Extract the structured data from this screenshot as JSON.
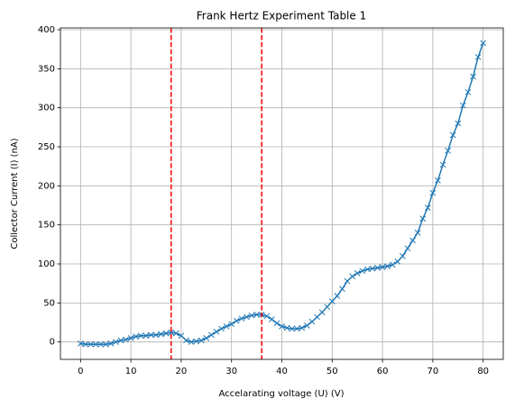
{
  "chart_data": {
    "type": "line",
    "title": "Frank Hertz Experiment Table 1",
    "x_label": "Accelarating voltage (U) (V)",
    "y_label": "Collector Current (I) (nA)",
    "x": [
      0,
      1,
      2,
      3,
      4,
      5,
      6,
      7,
      8,
      9,
      10,
      11,
      12,
      13,
      14,
      15,
      16,
      17,
      18,
      19,
      20,
      21,
      22,
      23,
      24,
      25,
      26,
      27,
      28,
      29,
      30,
      31,
      32,
      33,
      34,
      35,
      36,
      37,
      38,
      39,
      40,
      41,
      42,
      43,
      44,
      45,
      46,
      47,
      48,
      49,
      50,
      51,
      52,
      53,
      54,
      55,
      56,
      57,
      58,
      59,
      60,
      61,
      62,
      63,
      64,
      65,
      66,
      67,
      68,
      69,
      70,
      71,
      72,
      73,
      74,
      75,
      76,
      77,
      78,
      79,
      80
    ],
    "series": [
      {
        "color": "#1f77b4",
        "marker": "x",
        "values": [
          -2,
          -3,
          -3,
          -3,
          -3,
          -3,
          -2,
          0,
          2,
          3,
          5,
          7,
          8,
          8,
          9,
          9,
          10,
          11,
          12,
          11,
          8,
          2,
          0,
          1,
          2,
          5,
          9,
          13,
          17,
          20,
          23,
          27,
          30,
          32,
          34,
          35,
          35,
          33,
          29,
          24,
          20,
          18,
          17,
          17,
          18,
          21,
          26,
          32,
          38,
          45,
          52,
          59,
          68,
          78,
          84,
          88,
          91,
          93,
          94,
          95,
          96,
          97,
          99,
          103,
          110,
          120,
          130,
          140,
          158,
          172,
          191,
          207,
          227,
          245,
          265,
          280,
          303,
          320,
          340,
          365,
          383
        ]
      }
    ],
    "vlines": [
      18,
      36
    ],
    "vline_color": "#ff0000",
    "xlim": [
      -4,
      84
    ],
    "ylim": [
      -22.3,
      402.3
    ],
    "xticks": [
      0,
      10,
      20,
      30,
      40,
      50,
      60,
      70,
      80
    ],
    "yticks": [
      0,
      50,
      100,
      150,
      200,
      250,
      300,
      350,
      400
    ],
    "grid": true
  }
}
